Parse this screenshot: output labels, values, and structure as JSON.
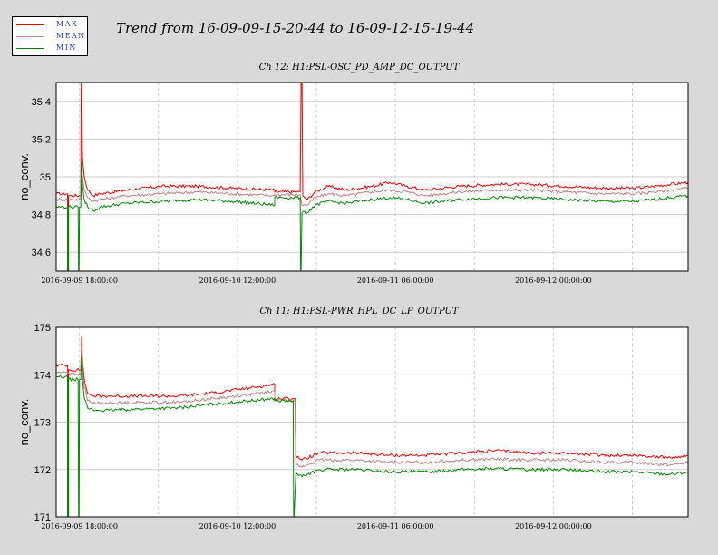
{
  "header": {
    "title": "Trend from 16-09-09-15-20-44 to 16-09-12-15-19-44"
  },
  "legend": {
    "items": [
      {
        "label": "MAX",
        "color": "#ee0000"
      },
      {
        "label": "MEAN",
        "color": "#c08080"
      },
      {
        "label": "MIN",
        "color": "#008800"
      }
    ]
  },
  "chart_data": [
    {
      "type": "line",
      "title": "Ch 12: H1:PSL-OSC_PD_AMP_DC_OUTPUT",
      "ylabel": "no_conv.",
      "xlabel": "",
      "x_range_hours": [
        0,
        72
      ],
      "x_ticks": [
        {
          "h": 2.65,
          "label": "2016-09-09 18:00:00"
        },
        {
          "h": 20.65,
          "label": "2016-09-10 12:00:00"
        },
        {
          "h": 38.65,
          "label": "2016-09-11 06:00:00"
        },
        {
          "h": 56.65,
          "label": "2016-09-12 00:00:00"
        }
      ],
      "ylim": [
        34.5,
        35.5
      ],
      "y_ticks": [
        {
          "v": 34.6,
          "label": "34.6"
        },
        {
          "v": 34.8,
          "label": "34.8"
        },
        {
          "v": 35.0,
          "label": "35"
        },
        {
          "v": 35.2,
          "label": "35.2"
        },
        {
          "v": 35.4,
          "label": "35.4"
        }
      ],
      "grid": true,
      "series": [
        {
          "name": "MAX",
          "color": "#ee0000",
          "points": [
            [
              0,
              34.91
            ],
            [
              1.3,
              34.91
            ],
            [
              1.3,
              34.5
            ],
            [
              1.4,
              34.5
            ],
            [
              1.4,
              34.9
            ],
            [
              2.8,
              34.9
            ],
            [
              2.85,
              35.5
            ],
            [
              2.9,
              35.5
            ],
            [
              3.0,
              35.1
            ],
            [
              3.2,
              35.0
            ],
            [
              3.6,
              34.93
            ],
            [
              4.2,
              34.9
            ],
            [
              5,
              34.91
            ],
            [
              8,
              34.93
            ],
            [
              12,
              34.95
            ],
            [
              16,
              34.95
            ],
            [
              20,
              34.94
            ],
            [
              24.9,
              34.93
            ],
            [
              24.9,
              34.92
            ],
            [
              27.8,
              34.92
            ],
            [
              27.9,
              35.5
            ],
            [
              28.0,
              35.5
            ],
            [
              28.1,
              34.9
            ],
            [
              28.6,
              34.88
            ],
            [
              29.5,
              34.92
            ],
            [
              31,
              34.95
            ],
            [
              33,
              34.93
            ],
            [
              36,
              34.95
            ],
            [
              38,
              34.97
            ],
            [
              40,
              34.95
            ],
            [
              42,
              34.93
            ],
            [
              46,
              34.95
            ],
            [
              50,
              34.96
            ],
            [
              54,
              34.96
            ],
            [
              58,
              34.95
            ],
            [
              62,
              34.94
            ],
            [
              66,
              34.94
            ],
            [
              68,
              34.95
            ],
            [
              70,
              34.96
            ],
            [
              72,
              34.97
            ]
          ]
        },
        {
          "name": "MEAN",
          "color": "#c08080",
          "points": [
            [
              0,
              34.88
            ],
            [
              1.3,
              34.88
            ],
            [
              2.8,
              34.88
            ],
            [
              2.9,
              35.12
            ],
            [
              3.0,
              35.0
            ],
            [
              3.2,
              34.93
            ],
            [
              3.6,
              34.89
            ],
            [
              4.2,
              34.87
            ],
            [
              5,
              34.88
            ],
            [
              8,
              34.9
            ],
            [
              12,
              34.91
            ],
            [
              16,
              34.92
            ],
            [
              20,
              34.91
            ],
            [
              24.9,
              34.9
            ],
            [
              24.9,
              34.905
            ],
            [
              27.8,
              34.905
            ],
            [
              28.0,
              34.85
            ],
            [
              28.6,
              34.85
            ],
            [
              29.5,
              34.89
            ],
            [
              31,
              34.91
            ],
            [
              33,
              34.9
            ],
            [
              36,
              34.92
            ],
            [
              38,
              34.93
            ],
            [
              40,
              34.92
            ],
            [
              42,
              34.9
            ],
            [
              46,
              34.92
            ],
            [
              50,
              34.93
            ],
            [
              54,
              34.93
            ],
            [
              58,
              34.92
            ],
            [
              62,
              34.91
            ],
            [
              66,
              34.91
            ],
            [
              68,
              34.92
            ],
            [
              70,
              34.93
            ],
            [
              72,
              34.94
            ]
          ]
        },
        {
          "name": "MIN",
          "color": "#008800",
          "points": [
            [
              0,
              34.84
            ],
            [
              1.3,
              34.84
            ],
            [
              1.3,
              34.5
            ],
            [
              1.4,
              34.5
            ],
            [
              1.4,
              34.84
            ],
            [
              2.5,
              34.84
            ],
            [
              2.55,
              34.5
            ],
            [
              2.6,
              34.5
            ],
            [
              2.65,
              34.84
            ],
            [
              2.8,
              34.84
            ],
            [
              2.9,
              35.08
            ],
            [
              3.0,
              34.95
            ],
            [
              3.2,
              34.88
            ],
            [
              3.6,
              34.84
            ],
            [
              4.2,
              34.82
            ],
            [
              5,
              34.84
            ],
            [
              8,
              34.86
            ],
            [
              12,
              34.87
            ],
            [
              16,
              34.88
            ],
            [
              20,
              34.87
            ],
            [
              24.9,
              34.85
            ],
            [
              24.9,
              34.89
            ],
            [
              27.8,
              34.89
            ],
            [
              27.85,
              34.5
            ],
            [
              27.9,
              34.5
            ],
            [
              28.0,
              34.81
            ],
            [
              28.6,
              34.81
            ],
            [
              29.5,
              34.85
            ],
            [
              31,
              34.87
            ],
            [
              33,
              34.86
            ],
            [
              36,
              34.88
            ],
            [
              38,
              34.89
            ],
            [
              40,
              34.88
            ],
            [
              42,
              34.86
            ],
            [
              46,
              34.88
            ],
            [
              50,
              34.89
            ],
            [
              54,
              34.89
            ],
            [
              58,
              34.88
            ],
            [
              62,
              34.87
            ],
            [
              66,
              34.87
            ],
            [
              68,
              34.88
            ],
            [
              70,
              34.89
            ],
            [
              72,
              34.9
            ]
          ]
        }
      ]
    },
    {
      "type": "line",
      "title": "Ch 11: H1:PSL-PWR_HPL_DC_LP_OUTPUT",
      "ylabel": "no_conv.",
      "xlabel": "",
      "x_range_hours": [
        0,
        72
      ],
      "x_ticks": [
        {
          "h": 2.65,
          "label": "2016-09-09 18:00:00"
        },
        {
          "h": 20.65,
          "label": "2016-09-10 12:00:00"
        },
        {
          "h": 38.65,
          "label": "2016-09-11 06:00:00"
        },
        {
          "h": 56.65,
          "label": "2016-09-12 00:00:00"
        }
      ],
      "ylim": [
        171,
        175
      ],
      "y_ticks": [
        {
          "v": 171,
          "label": "171"
        },
        {
          "v": 172,
          "label": "172"
        },
        {
          "v": 173,
          "label": "173"
        },
        {
          "v": 174,
          "label": "174"
        },
        {
          "v": 175,
          "label": "175"
        }
      ],
      "grid": true,
      "series": [
        {
          "name": "MAX",
          "color": "#ee0000",
          "points": [
            [
              0,
              174.2
            ],
            [
              1.3,
              174.2
            ],
            [
              1.3,
              171
            ],
            [
              1.4,
              171
            ],
            [
              1.4,
              174.1
            ],
            [
              2.8,
              174.1
            ],
            [
              2.9,
              174.8
            ],
            [
              3.0,
              174.3
            ],
            [
              3.2,
              173.9
            ],
            [
              3.6,
              173.6
            ],
            [
              4.2,
              173.55
            ],
            [
              6,
              173.55
            ],
            [
              10,
              173.55
            ],
            [
              14,
              173.55
            ],
            [
              18,
              173.62
            ],
            [
              22,
              173.72
            ],
            [
              24.9,
              173.8
            ],
            [
              24.9,
              173.5
            ],
            [
              27.2,
              173.5
            ],
            [
              27.3,
              172.3
            ],
            [
              28,
              172.2
            ],
            [
              30,
              172.35
            ],
            [
              34,
              172.35
            ],
            [
              38,
              172.3
            ],
            [
              42,
              172.3
            ],
            [
              46,
              172.35
            ],
            [
              50,
              172.4
            ],
            [
              54,
              172.35
            ],
            [
              58,
              172.35
            ],
            [
              62,
              172.3
            ],
            [
              66,
              172.3
            ],
            [
              70,
              172.25
            ],
            [
              72,
              172.3
            ]
          ]
        },
        {
          "name": "MEAN",
          "color": "#c08080",
          "points": [
            [
              0,
              174.05
            ],
            [
              1.3,
              174.05
            ],
            [
              2.8,
              174.0
            ],
            [
              2.9,
              174.6
            ],
            [
              3.0,
              174.1
            ],
            [
              3.2,
              173.75
            ],
            [
              3.6,
              173.45
            ],
            [
              4.2,
              173.4
            ],
            [
              6,
              173.4
            ],
            [
              10,
              173.42
            ],
            [
              14,
              173.42
            ],
            [
              18,
              173.5
            ],
            [
              22,
              173.58
            ],
            [
              24.9,
              173.65
            ],
            [
              24.9,
              173.47
            ],
            [
              27.2,
              173.47
            ],
            [
              27.3,
              172.1
            ],
            [
              28,
              172.05
            ],
            [
              30,
              172.2
            ],
            [
              34,
              172.2
            ],
            [
              38,
              172.15
            ],
            [
              42,
              172.15
            ],
            [
              46,
              172.2
            ],
            [
              50,
              172.22
            ],
            [
              54,
              172.2
            ],
            [
              58,
              172.2
            ],
            [
              62,
              172.15
            ],
            [
              66,
              172.15
            ],
            [
              70,
              172.1
            ],
            [
              72,
              172.15
            ]
          ]
        },
        {
          "name": "MIN",
          "color": "#008800",
          "points": [
            [
              0,
              173.95
            ],
            [
              1.3,
              173.95
            ],
            [
              1.3,
              171
            ],
            [
              1.4,
              171
            ],
            [
              1.4,
              173.9
            ],
            [
              2.5,
              173.9
            ],
            [
              2.55,
              171
            ],
            [
              2.6,
              171
            ],
            [
              2.65,
              173.9
            ],
            [
              2.8,
              173.9
            ],
            [
              2.9,
              174.4
            ],
            [
              3.0,
              173.9
            ],
            [
              3.2,
              173.5
            ],
            [
              3.6,
              173.3
            ],
            [
              4.2,
              173.25
            ],
            [
              6,
              173.25
            ],
            [
              10,
              173.28
            ],
            [
              14,
              173.3
            ],
            [
              18,
              173.38
            ],
            [
              22,
              173.45
            ],
            [
              24.9,
              173.5
            ],
            [
              24.9,
              173.45
            ],
            [
              27.0,
              173.45
            ],
            [
              27.05,
              171
            ],
            [
              27.1,
              171
            ],
            [
              27.3,
              171.9
            ],
            [
              28,
              171.85
            ],
            [
              30,
              172.0
            ],
            [
              34,
              172.0
            ],
            [
              38,
              171.95
            ],
            [
              42,
              171.95
            ],
            [
              46,
              172.0
            ],
            [
              50,
              172.02
            ],
            [
              54,
              172.0
            ],
            [
              58,
              172.0
            ],
            [
              62,
              171.95
            ],
            [
              66,
              171.95
            ],
            [
              70,
              171.9
            ],
            [
              72,
              171.95
            ]
          ]
        }
      ]
    }
  ]
}
